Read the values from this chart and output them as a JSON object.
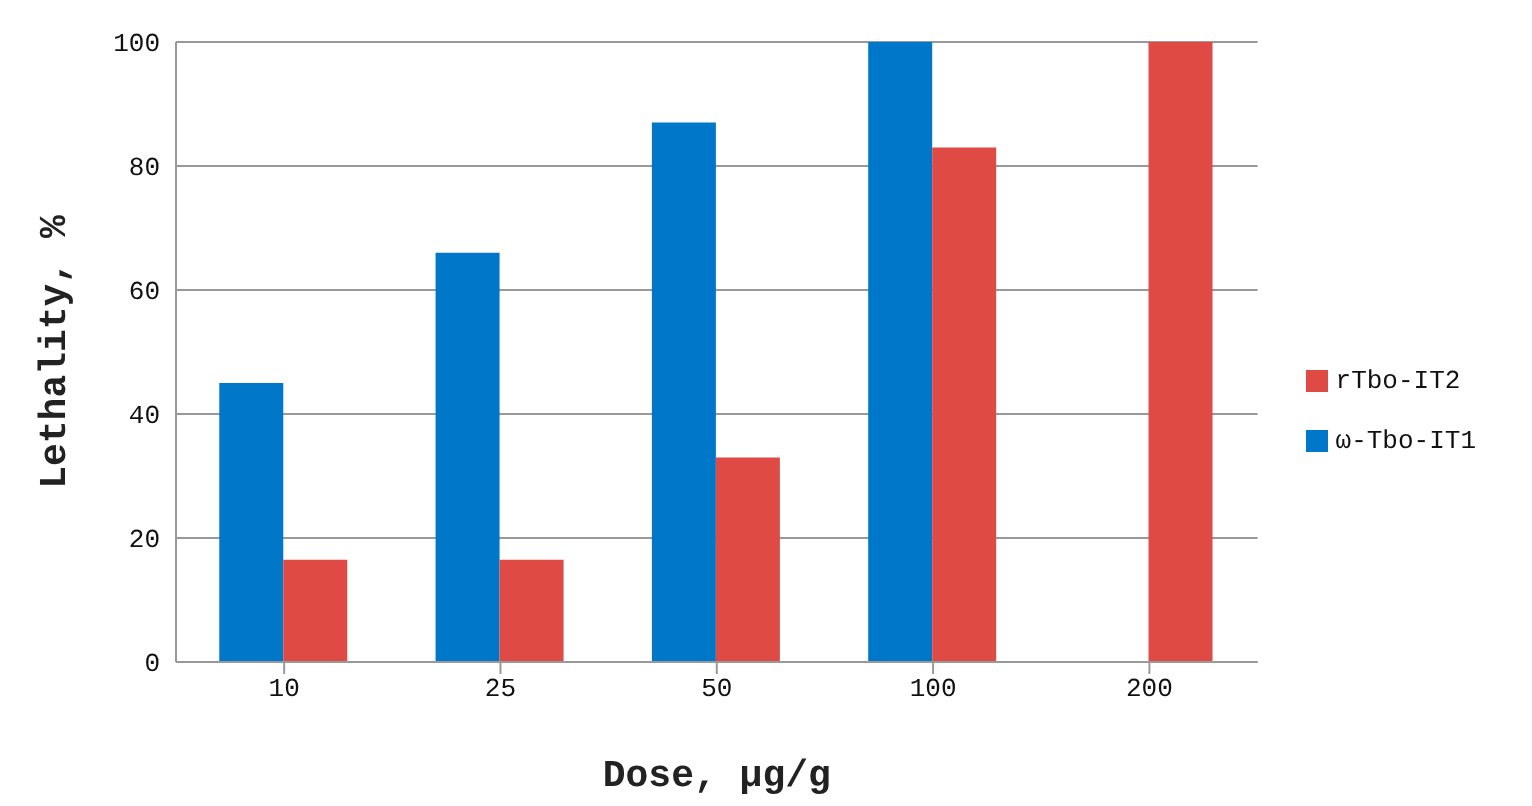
{
  "chart_data": {
    "type": "bar",
    "xlabel": "Dose, μg/g",
    "ylabel": "Lethality, %",
    "categories": [
      "10",
      "25",
      "50",
      "100",
      "200"
    ],
    "series": [
      {
        "name": "ω-Tbo-IT1",
        "color": "#0077c8",
        "values": [
          45,
          66,
          87,
          100,
          null
        ]
      },
      {
        "name": "rTbo-IT2",
        "color": "#e04a45",
        "values": [
          16.5,
          16.5,
          33,
          83,
          100
        ]
      }
    ],
    "ylim": [
      0,
      100
    ],
    "yticks": [
      0,
      20,
      40,
      60,
      80,
      100
    ],
    "grid": "y",
    "legend": "right"
  }
}
